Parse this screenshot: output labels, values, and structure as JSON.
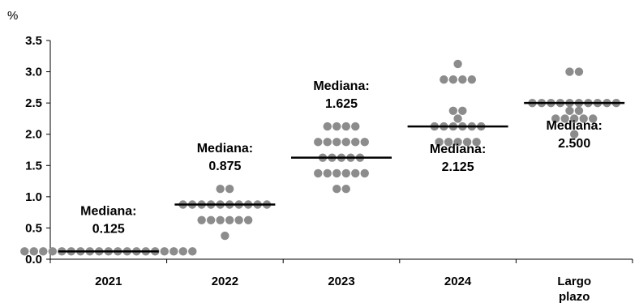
{
  "chart_data": {
    "type": "scatter",
    "ylabel": "%",
    "ylim": [
      0,
      3.5
    ],
    "yticks": [
      "0.0",
      "0.5",
      "1.0",
      "1.5",
      "2.0",
      "2.5",
      "3.0",
      "3.5"
    ],
    "dot_color": "#8c8c8c",
    "median_color": "#000000",
    "categories": [
      {
        "label": [
          "2021"
        ],
        "median": 0.125,
        "median_label": [
          "Mediana:",
          "0.125"
        ],
        "rows": [
          [
            0.125,
            19
          ]
        ]
      },
      {
        "label": [
          "2022"
        ],
        "median": 0.875,
        "median_label": [
          "Mediana:",
          "0.875"
        ],
        "rows": [
          [
            1.125,
            2
          ],
          [
            0.875,
            10
          ],
          [
            0.625,
            6
          ],
          [
            0.375,
            1
          ]
        ]
      },
      {
        "label": [
          "2023"
        ],
        "median": 1.625,
        "median_label": [
          "Mediana:",
          "1.625"
        ],
        "rows": [
          [
            2.125,
            4
          ],
          [
            1.875,
            6
          ],
          [
            1.625,
            5
          ],
          [
            1.375,
            6
          ],
          [
            1.125,
            2
          ]
        ]
      },
      {
        "label": [
          "2024"
        ],
        "median": 2.125,
        "median_label": [
          "Mediana:",
          "2.125"
        ],
        "rows": [
          [
            3.125,
            1
          ],
          [
            2.875,
            4
          ],
          [
            2.375,
            2
          ],
          [
            2.25,
            1
          ],
          [
            2.125,
            6
          ],
          [
            1.875,
            5
          ]
        ]
      },
      {
        "label": [
          "Largo",
          "plazo"
        ],
        "median": 2.5,
        "median_label": [
          "Mediana:",
          "2.500"
        ],
        "rows": [
          [
            3.0,
            2
          ],
          [
            2.5,
            10
          ],
          [
            2.375,
            2
          ],
          [
            2.25,
            5
          ],
          [
            2.0,
            1
          ]
        ]
      }
    ]
  }
}
